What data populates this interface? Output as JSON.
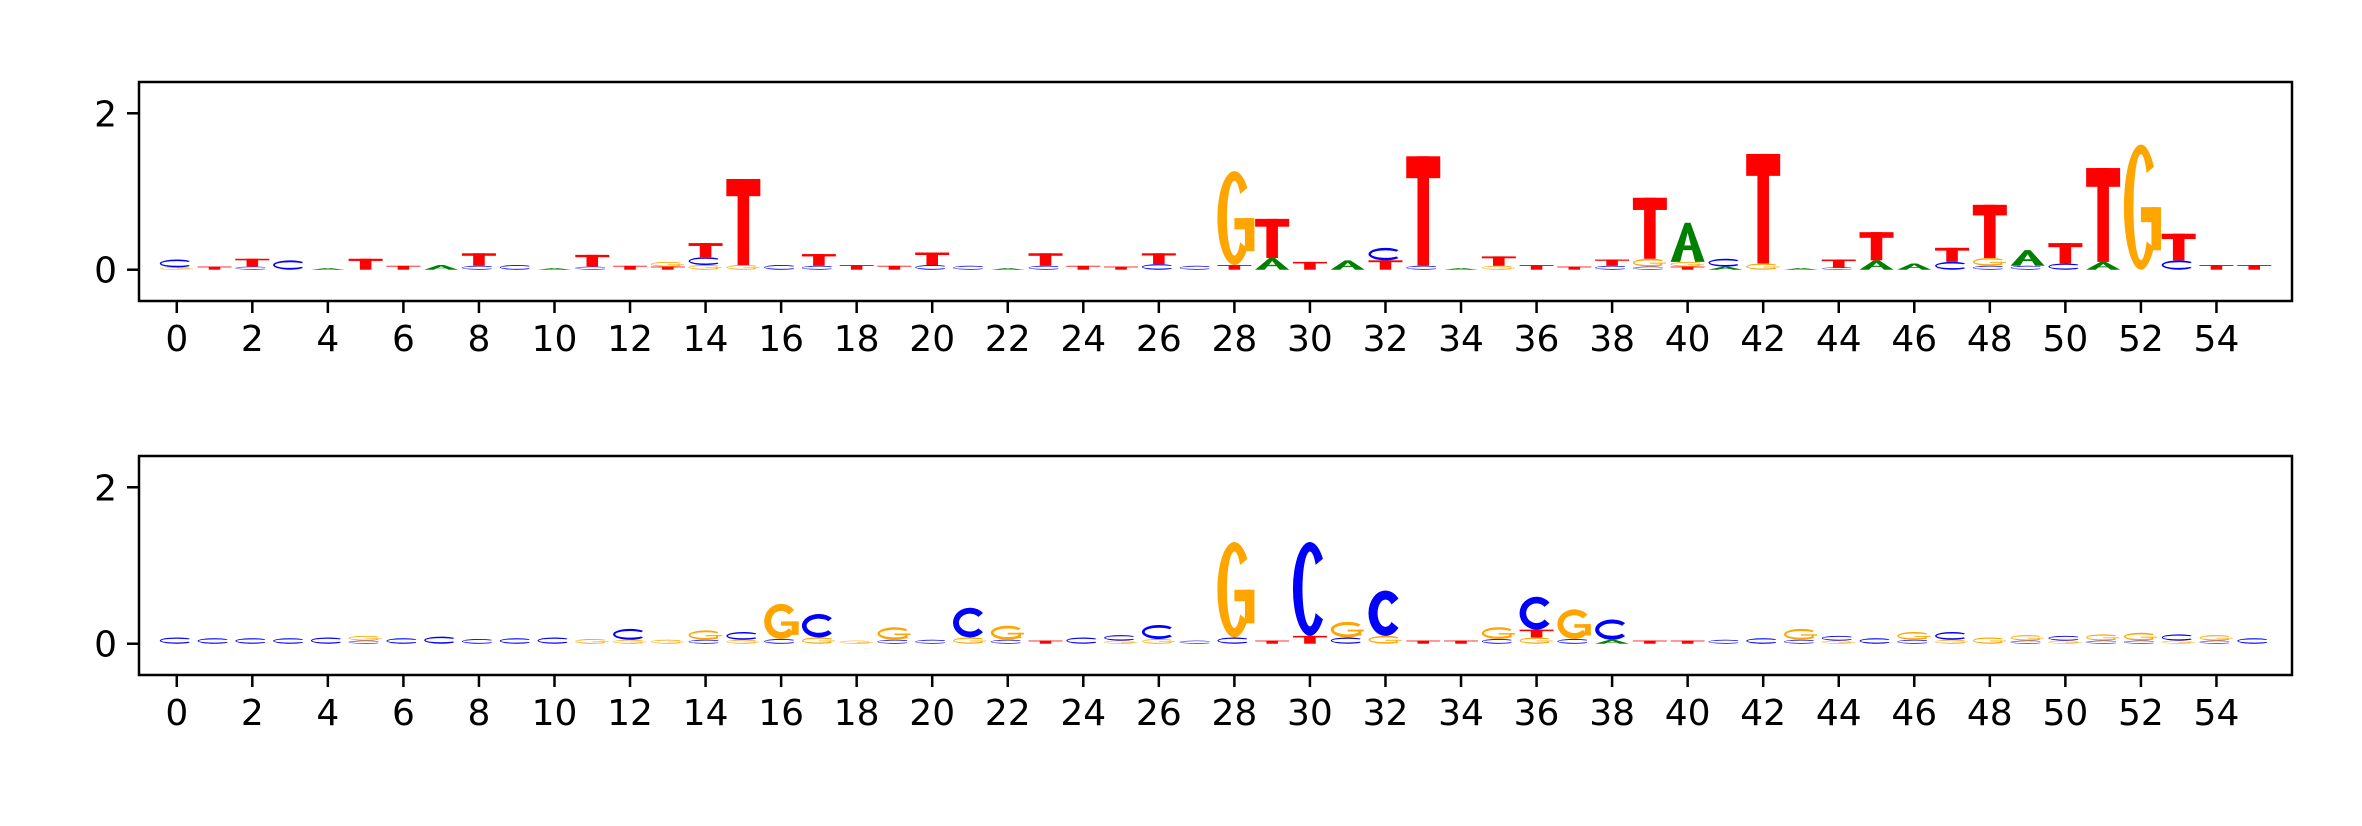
{
  "colors": {
    "A": "#008000",
    "C": "#0000ff",
    "G": "#ffa500",
    "T": "#ff0000"
  },
  "chart_data": [
    {
      "type": "sequence-logo",
      "title": "",
      "xlabel": "",
      "ylabel": "",
      "xlim": [
        -1,
        56
      ],
      "ylim": [
        -0.4,
        2.4
      ],
      "x_ticks": [
        0,
        2,
        4,
        6,
        8,
        10,
        12,
        14,
        16,
        18,
        20,
        22,
        24,
        26,
        28,
        30,
        32,
        34,
        36,
        38,
        40,
        42,
        44,
        46,
        48,
        50,
        52,
        54
      ],
      "y_ticks": [
        0,
        2
      ],
      "positions": [
        [
          [
            "C",
            0.1
          ],
          [
            "G",
            0.03
          ]
        ],
        [
          [
            "T",
            0.04
          ]
        ],
        [
          [
            "T",
            0.1
          ],
          [
            "C",
            0.04
          ]
        ],
        [
          [
            "C",
            0.12
          ]
        ],
        [
          [
            "A",
            0.02
          ]
        ],
        [
          [
            "T",
            0.14
          ]
        ],
        [
          [
            "T",
            0.05
          ]
        ],
        [
          [
            "A",
            0.06
          ]
        ],
        [
          [
            "T",
            0.16
          ],
          [
            "C",
            0.05
          ]
        ],
        [
          [
            "C",
            0.06
          ]
        ],
        [
          [
            "A",
            0.02
          ]
        ],
        [
          [
            "T",
            0.15
          ],
          [
            "C",
            0.04
          ]
        ],
        [
          [
            "T",
            0.05
          ]
        ],
        [
          [
            "G",
            0.06
          ],
          [
            "T",
            0.04
          ]
        ],
        [
          [
            "T",
            0.18
          ],
          [
            "C",
            0.1
          ],
          [
            "G",
            0.06
          ]
        ],
        [
          [
            "T",
            1.1
          ],
          [
            "G",
            0.06
          ]
        ],
        [
          [
            "C",
            0.06
          ]
        ],
        [
          [
            "T",
            0.15
          ],
          [
            "C",
            0.05
          ]
        ],
        [
          [
            "T",
            0.06
          ]
        ],
        [
          [
            "T",
            0.05
          ]
        ],
        [
          [
            "T",
            0.16
          ],
          [
            "C",
            0.06
          ]
        ],
        [
          [
            "C",
            0.05
          ]
        ],
        [
          [
            "A",
            0.02
          ]
        ],
        [
          [
            "T",
            0.16
          ],
          [
            "C",
            0.05
          ]
        ],
        [
          [
            "T",
            0.05
          ]
        ],
        [
          [
            "T",
            0.04
          ]
        ],
        [
          [
            "T",
            0.14
          ],
          [
            "C",
            0.07
          ]
        ],
        [
          [
            "C",
            0.05
          ]
        ],
        [
          [
            "G",
            1.2
          ],
          [
            "T",
            0.06
          ]
        ],
        [
          [
            "T",
            0.5
          ],
          [
            "A",
            0.15
          ]
        ],
        [
          [
            "T",
            0.1
          ]
        ],
        [
          [
            "A",
            0.12
          ]
        ],
        [
          [
            "C",
            0.16
          ],
          [
            "T",
            0.12
          ]
        ],
        [
          [
            "T",
            1.4
          ],
          [
            "C",
            0.05
          ]
        ],
        [
          [
            "A",
            0.02
          ]
        ],
        [
          [
            "T",
            0.12
          ],
          [
            "G",
            0.05
          ]
        ],
        [
          [
            "T",
            0.06
          ]
        ],
        [
          [
            "T",
            0.04
          ]
        ],
        [
          [
            "T",
            0.08
          ],
          [
            "C",
            0.05
          ]
        ],
        [
          [
            "T",
            0.78
          ],
          [
            "G",
            0.1
          ],
          [
            "C",
            0.04
          ]
        ],
        [
          [
            "A",
            0.5
          ],
          [
            "G",
            0.06
          ],
          [
            "T",
            0.04
          ]
        ],
        [
          [
            "C",
            0.1
          ],
          [
            "A",
            0.04
          ]
        ],
        [
          [
            "T",
            1.4
          ],
          [
            "G",
            0.08
          ]
        ],
        [
          [
            "A",
            0.02
          ]
        ],
        [
          [
            "T",
            0.1
          ],
          [
            "C",
            0.03
          ]
        ],
        [
          [
            "T",
            0.36
          ],
          [
            "A",
            0.12
          ]
        ],
        [
          [
            "A",
            0.08
          ]
        ],
        [
          [
            "T",
            0.18
          ],
          [
            "C",
            0.1
          ]
        ],
        [
          [
            "T",
            0.68
          ],
          [
            "G",
            0.1
          ],
          [
            "C",
            0.05
          ]
        ],
        [
          [
            "A",
            0.2
          ],
          [
            "C",
            0.05
          ]
        ],
        [
          [
            "T",
            0.26
          ],
          [
            "C",
            0.08
          ]
        ],
        [
          [
            "T",
            1.2
          ],
          [
            "A",
            0.1
          ]
        ],
        [
          [
            "G",
            1.6
          ]
        ],
        [
          [
            "T",
            0.34
          ],
          [
            "C",
            0.12
          ]
        ],
        [
          [
            "T",
            0.06
          ]
        ],
        [
          [
            "T",
            0.06
          ]
        ]
      ]
    },
    {
      "type": "sequence-logo",
      "title": "",
      "xlabel": "",
      "ylabel": "",
      "xlim": [
        -1,
        56
      ],
      "ylim": [
        -0.4,
        2.4
      ],
      "x_ticks": [
        0,
        2,
        4,
        6,
        8,
        10,
        12,
        14,
        16,
        18,
        20,
        22,
        24,
        26,
        28,
        30,
        32,
        34,
        36,
        38,
        40,
        42,
        44,
        46,
        48,
        50,
        52,
        54
      ],
      "y_ticks": [
        0,
        2
      ],
      "positions": [
        [
          [
            "C",
            0.08
          ]
        ],
        [
          [
            "C",
            0.07
          ]
        ],
        [
          [
            "C",
            0.07
          ]
        ],
        [
          [
            "C",
            0.07
          ]
        ],
        [
          [
            "C",
            0.08
          ]
        ],
        [
          [
            "G",
            0.06
          ],
          [
            "C",
            0.04
          ]
        ],
        [
          [
            "C",
            0.07
          ]
        ],
        [
          [
            "C",
            0.09
          ]
        ],
        [
          [
            "C",
            0.06
          ]
        ],
        [
          [
            "C",
            0.07
          ]
        ],
        [
          [
            "C",
            0.08
          ]
        ],
        [
          [
            "G",
            0.06
          ]
        ],
        [
          [
            "C",
            0.14
          ],
          [
            "G",
            0.05
          ]
        ],
        [
          [
            "G",
            0.05
          ]
        ],
        [
          [
            "G",
            0.12
          ],
          [
            "C",
            0.05
          ]
        ],
        [
          [
            "C",
            0.1
          ],
          [
            "G",
            0.05
          ]
        ],
        [
          [
            "G",
            0.45
          ],
          [
            "C",
            0.06
          ]
        ],
        [
          [
            "C",
            0.3
          ],
          [
            "G",
            0.08
          ]
        ],
        [
          [
            "G",
            0.04
          ]
        ],
        [
          [
            "G",
            0.16
          ],
          [
            "C",
            0.05
          ]
        ],
        [
          [
            "C",
            0.05
          ]
        ],
        [
          [
            "C",
            0.38
          ],
          [
            "G",
            0.08
          ]
        ],
        [
          [
            "G",
            0.18
          ],
          [
            "C",
            0.05
          ]
        ],
        [
          [
            "T",
            0.04
          ]
        ],
        [
          [
            "C",
            0.08
          ]
        ],
        [
          [
            "C",
            0.07
          ],
          [
            "G",
            0.04
          ]
        ],
        [
          [
            "C",
            0.18
          ],
          [
            "G",
            0.06
          ]
        ],
        [
          [
            "C",
            0.04
          ]
        ],
        [
          [
            "G",
            1.22
          ],
          [
            "C",
            0.08
          ]
        ],
        [
          [
            "T",
            0.04
          ]
        ],
        [
          [
            "C",
            1.2
          ],
          [
            "T",
            0.1
          ]
        ],
        [
          [
            "G",
            0.2
          ],
          [
            "C",
            0.08
          ]
        ],
        [
          [
            "C",
            0.58
          ],
          [
            "G",
            0.1
          ]
        ],
        [
          [
            "T",
            0.04
          ]
        ],
        [
          [
            "T",
            0.04
          ]
        ],
        [
          [
            "G",
            0.15
          ],
          [
            "C",
            0.06
          ]
        ],
        [
          [
            "C",
            0.42
          ],
          [
            "T",
            0.1
          ],
          [
            "G",
            0.08
          ]
        ],
        [
          [
            "G",
            0.38
          ],
          [
            "C",
            0.06
          ]
        ],
        [
          [
            "C",
            0.26
          ],
          [
            "A",
            0.05
          ]
        ],
        [
          [
            "T",
            0.04
          ]
        ],
        [
          [
            "T",
            0.04
          ]
        ],
        [
          [
            "C",
            0.05
          ]
        ],
        [
          [
            "C",
            0.07
          ]
        ],
        [
          [
            "G",
            0.14
          ],
          [
            "C",
            0.05
          ]
        ],
        [
          [
            "C",
            0.06
          ],
          [
            "G",
            0.04
          ]
        ],
        [
          [
            "C",
            0.07
          ]
        ],
        [
          [
            "G",
            0.1
          ],
          [
            "C",
            0.05
          ]
        ],
        [
          [
            "C",
            0.1
          ],
          [
            "G",
            0.05
          ]
        ],
        [
          [
            "G",
            0.08
          ]
        ],
        [
          [
            "G",
            0.07
          ],
          [
            "C",
            0.04
          ]
        ],
        [
          [
            "C",
            0.06
          ],
          [
            "G",
            0.04
          ]
        ],
        [
          [
            "G",
            0.08
          ],
          [
            "C",
            0.04
          ]
        ],
        [
          [
            "G",
            0.1
          ],
          [
            "C",
            0.04
          ]
        ],
        [
          [
            "C",
            0.08
          ],
          [
            "G",
            0.04
          ]
        ],
        [
          [
            "G",
            0.07
          ],
          [
            "C",
            0.04
          ]
        ],
        [
          [
            "C",
            0.07
          ]
        ]
      ]
    }
  ]
}
